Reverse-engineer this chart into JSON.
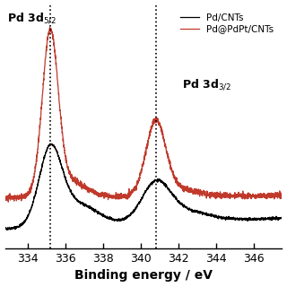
{
  "xmin": 332.8,
  "xmax": 347.5,
  "x_ticks": [
    334,
    336,
    338,
    340,
    342,
    344,
    346
  ],
  "vline1": 335.2,
  "vline2": 340.8,
  "xlabel": "Binding energy / eV",
  "label_black": "Pd/CNTs",
  "label_red": "Pd@PdPt/CNTs",
  "color_black": "#000000",
  "color_red": "#c0392b",
  "background": "#ffffff",
  "noise_seed": 42
}
